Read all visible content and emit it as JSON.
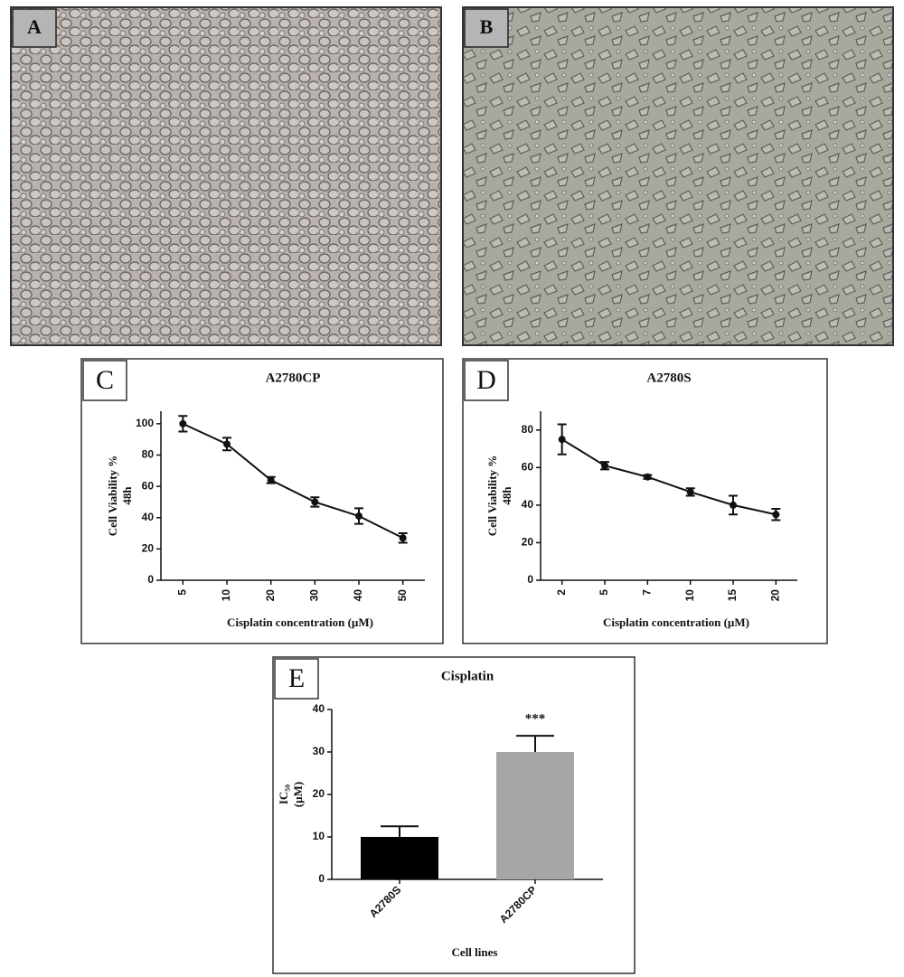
{
  "panels": [
    "A",
    "B"
  ],
  "chart_data": [
    {
      "type": "line",
      "label": "C",
      "title": "A2780CP",
      "xlabel": "Cisplatin concentration (µM)",
      "ylabel": [
        "Cell Viability %",
        "48h"
      ],
      "categories": [
        "5",
        "10",
        "20",
        "30",
        "40",
        "50"
      ],
      "values": [
        100,
        87,
        64,
        50,
        41,
        27
      ],
      "errors": [
        5,
        4,
        2,
        3,
        5,
        3
      ],
      "color": "#111111",
      "ylim": [
        0,
        108
      ],
      "yticks": [
        0,
        20,
        40,
        60,
        80,
        100
      ]
    },
    {
      "type": "line",
      "label": "D",
      "title": "A2780S",
      "xlabel": "Cisplatin concentration (µM)",
      "ylabel": [
        "Cell Viability %",
        "48h"
      ],
      "categories": [
        "2",
        "5",
        "7",
        "10",
        "15",
        "20"
      ],
      "values": [
        75,
        61,
        55,
        47,
        40,
        35
      ],
      "errors": [
        8,
        2,
        1,
        2,
        5,
        3
      ],
      "color": "#111111",
      "ylim": [
        0,
        90
      ],
      "yticks": [
        0,
        20,
        40,
        60,
        80
      ]
    },
    {
      "type": "bar",
      "label": "E",
      "title": "Cisplatin",
      "xlabel": "Cell lines",
      "ylabel": [
        "IC₅₀",
        "(µM)"
      ],
      "categories": [
        "A2780S",
        "A2780CP"
      ],
      "values": [
        10,
        30
      ],
      "errors": [
        2.5,
        3.8
      ],
      "colors": [
        "#000000",
        "#a6a6a6"
      ],
      "annotation": "***",
      "ylim": [
        0,
        40
      ],
      "yticks": [
        0,
        10,
        20,
        30,
        40
      ]
    }
  ]
}
